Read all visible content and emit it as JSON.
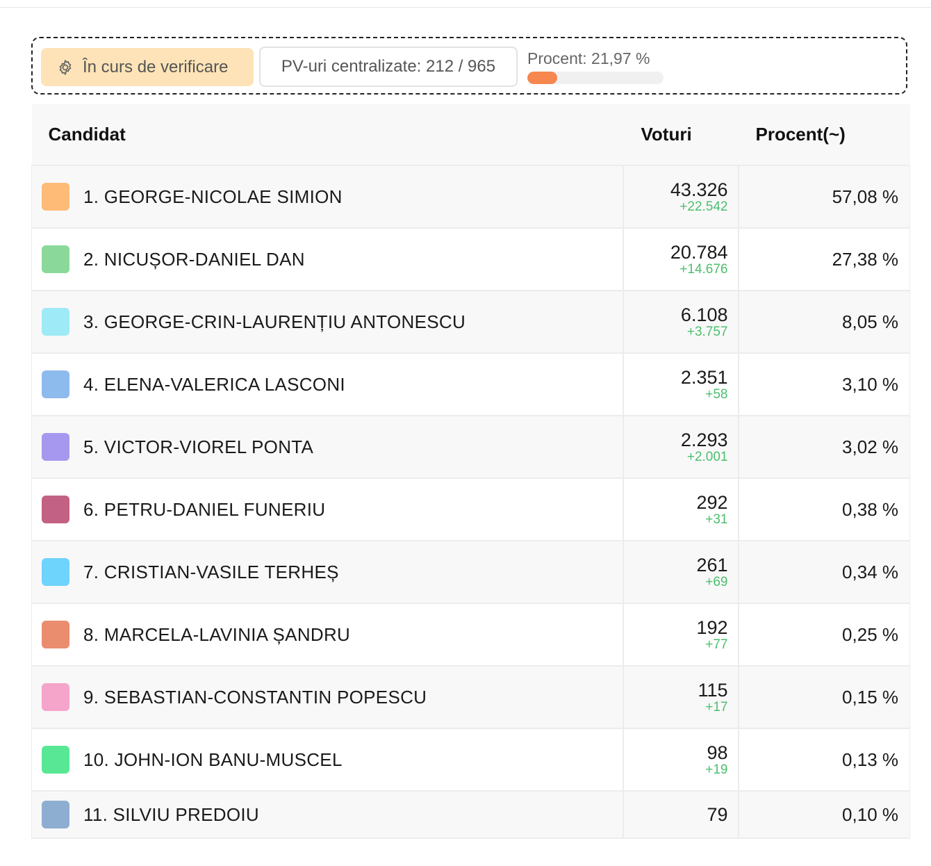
{
  "status": {
    "badge_label": "În curs de verificare",
    "badge_icon": "gear-icon",
    "pv_label": "PV-uri centralizate: 212 / 965",
    "percent_label": "Procent: 21,97 %",
    "percent_value": 21.97
  },
  "table": {
    "headers": {
      "candidate": "Candidat",
      "votes": "Voturi",
      "percent": "Procent(~)"
    },
    "rows": [
      {
        "name": "1. GEORGE-NICOLAE SIMION",
        "color": "#fdbb77",
        "votes": "43.326",
        "delta": "+22.542",
        "percent": "57,08 %"
      },
      {
        "name": "2. NICUȘOR-DANIEL DAN",
        "color": "#8ad99a",
        "votes": "20.784",
        "delta": "+14.676",
        "percent": "27,38 %"
      },
      {
        "name": "3. GEORGE-CRIN-LAURENȚIU ANTONESCU",
        "color": "#9eeaf6",
        "votes": "6.108",
        "delta": "+3.757",
        "percent": "8,05 %"
      },
      {
        "name": "4. ELENA-VALERICA LASCONI",
        "color": "#8dbbee",
        "votes": "2.351",
        "delta": "+58",
        "percent": "3,10 %"
      },
      {
        "name": "5. VICTOR-VIOREL PONTA",
        "color": "#a798ef",
        "votes": "2.293",
        "delta": "+2.001",
        "percent": "3,02 %"
      },
      {
        "name": "6. PETRU-DANIEL FUNERIU",
        "color": "#c26184",
        "votes": "292",
        "delta": "+31",
        "percent": "0,38 %"
      },
      {
        "name": "7. CRISTIAN-VASILE TERHEȘ",
        "color": "#6fd4fc",
        "votes": "261",
        "delta": "+69",
        "percent": "0,34 %"
      },
      {
        "name": "8. MARCELA-LAVINIA ȘANDRU",
        "color": "#ea8d6f",
        "votes": "192",
        "delta": "+77",
        "percent": "0,25 %"
      },
      {
        "name": "9. SEBASTIAN-CONSTANTIN POPESCU",
        "color": "#f5a4ca",
        "votes": "115",
        "delta": "+17",
        "percent": "0,15 %"
      },
      {
        "name": "10. JOHN-ION BANU-MUSCEL",
        "color": "#58e895",
        "votes": "98",
        "delta": "+19",
        "percent": "0,13 %"
      },
      {
        "name": "11. SILVIU PREDOIU",
        "color": "#8eaed1",
        "votes": "79",
        "delta": "",
        "percent": "0,10 %"
      }
    ]
  }
}
